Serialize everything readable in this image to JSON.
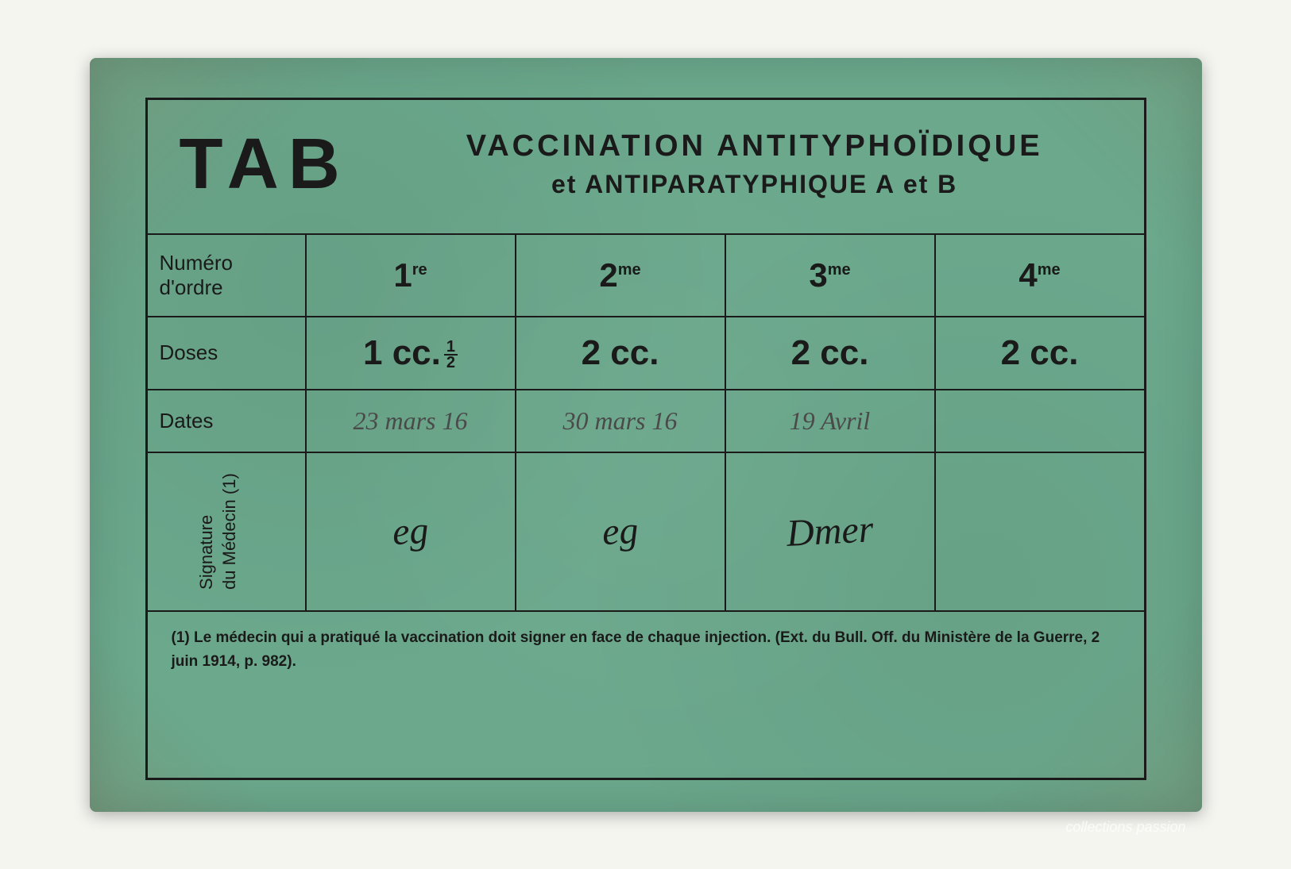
{
  "card": {
    "background_color": "#6ba88c",
    "border_color": "#1a1a1a",
    "text_color": "#1a1a1a",
    "handwriting_color": "#4a4a4a"
  },
  "header": {
    "tab_label": "TAB",
    "title_line1": "VACCINATION ANTITYPHOÏDIQUE",
    "title_line2": "et ANTIPARATYPHIQUE A et B"
  },
  "rows": {
    "numero_label": "Numéro d'ordre",
    "doses_label": "Doses",
    "dates_label": "Dates",
    "signature_label_line1": "Signature",
    "signature_label_line2": "du Médecin (1)"
  },
  "columns": [
    {
      "ordinal_num": "1",
      "ordinal_suffix": "re",
      "dose_value": "1 cc.",
      "dose_fraction_num": "1",
      "dose_fraction_den": "2",
      "has_fraction": true,
      "date": "23 mars 16",
      "signature": "eg"
    },
    {
      "ordinal_num": "2",
      "ordinal_suffix": "me",
      "dose_value": "2 cc.",
      "has_fraction": false,
      "date": "30 mars 16",
      "signature": "eg"
    },
    {
      "ordinal_num": "3",
      "ordinal_suffix": "me",
      "dose_value": "2 cc.",
      "has_fraction": false,
      "date": "19 Avril",
      "signature": "Dmer"
    },
    {
      "ordinal_num": "4",
      "ordinal_suffix": "me",
      "dose_value": "2 cc.",
      "has_fraction": false,
      "date": "",
      "signature": ""
    }
  ],
  "footnote": "(1)   Le médecin qui a pratiqué la vaccination doit signer en face de chaque injection. (Ext. du Bull. Off. du Ministère de la Guerre, 2 juin 1914, p. 982).",
  "watermark": "collections passion"
}
